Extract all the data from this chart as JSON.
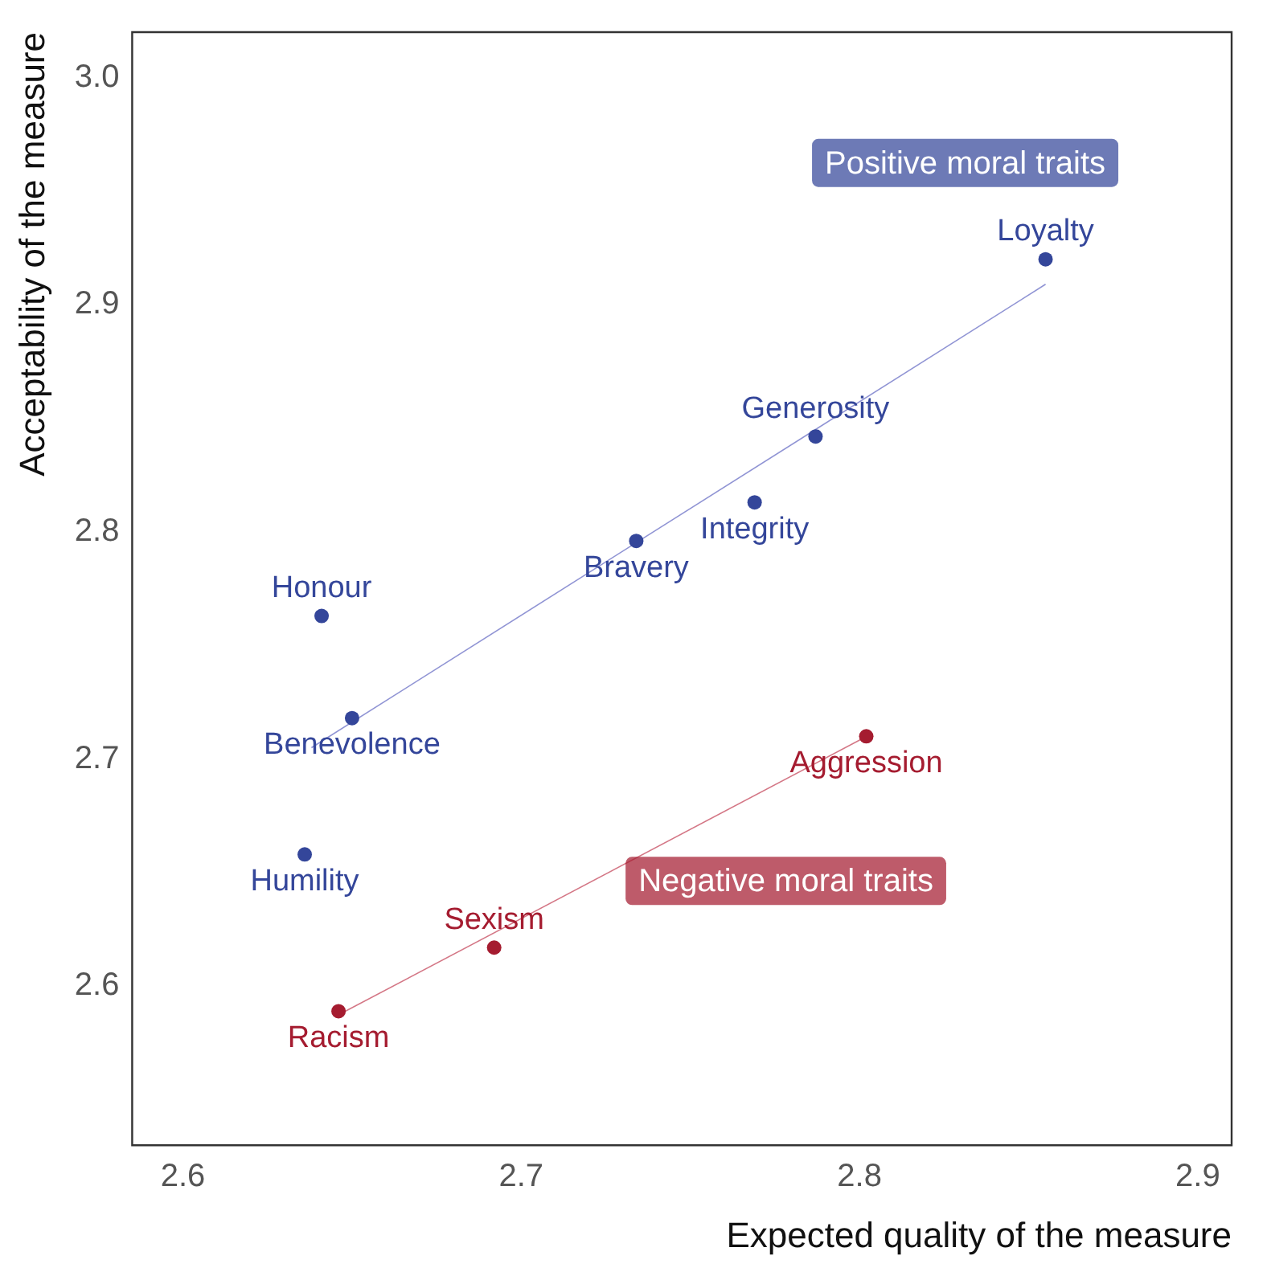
{
  "chart_data": {
    "type": "scatter",
    "xlabel": "Expected quality of the measure",
    "ylabel": "Acceptability of the measure",
    "xlim": [
      2.585,
      2.91
    ],
    "ylim": [
      2.53,
      3.02
    ],
    "xticks": [
      2.6,
      2.7,
      2.8,
      2.9
    ],
    "yticks": [
      2.6,
      2.7,
      2.8,
      2.9,
      {
        "value": 3,
        "label": "3.0"
      }
    ],
    "grid": false,
    "legend": false,
    "series": [
      {
        "name": "Positive moral traits",
        "marker": "circle",
        "color": "#34469a",
        "x": [
          2.855,
          2.787,
          2.769,
          2.734,
          2.641,
          2.65,
          2.636
        ],
        "values": [
          2.92,
          2.842,
          2.813,
          2.796,
          2.763,
          2.718,
          2.658
        ]
      },
      {
        "type": "line",
        "marker": "none",
        "color": "#9094d4",
        "x": [
          2.638,
          2.855
        ],
        "values": [
          2.705,
          2.909
        ]
      },
      {
        "name": "Negative moral traits",
        "marker": "circle",
        "color": "#a51c30",
        "x": [
          2.802,
          2.692,
          2.646
        ],
        "values": [
          2.71,
          2.617,
          2.589
        ]
      },
      {
        "type": "line",
        "marker": "none",
        "color": "#d47786",
        "x": [
          2.6455,
          2.8015
        ],
        "values": [
          2.587,
          2.7095
        ]
      }
    ],
    "annotations": [
      {
        "text": "Loyalty",
        "x": 2.855,
        "y": 2.92
      },
      {
        "text": "Generosity",
        "x": 2.787,
        "y": 2.842
      },
      {
        "text": "Integrity",
        "x": 2.769,
        "y": 2.813
      },
      {
        "text": "Bravery",
        "x": 2.734,
        "y": 2.796
      },
      {
        "text": "Honour",
        "x": 2.641,
        "y": 2.763
      },
      {
        "text": "Benevolence",
        "x": 2.65,
        "y": 2.718
      },
      {
        "text": "Humility",
        "x": 2.636,
        "y": 2.658
      },
      {
        "text": "Aggression",
        "x": 2.802,
        "y": 2.71
      },
      {
        "text": "Sexism",
        "x": 2.692,
        "y": 2.617
      },
      {
        "text": "Racism",
        "x": 2.646,
        "y": 2.589
      }
    ]
  }
}
